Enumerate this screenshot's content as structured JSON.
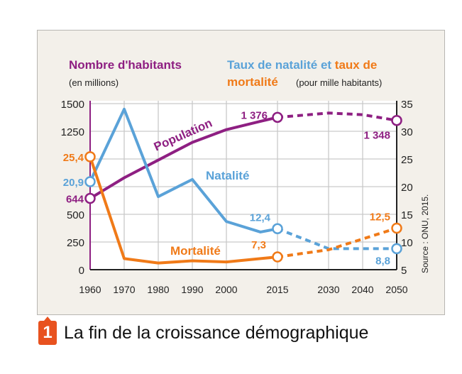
{
  "chart_data": {
    "type": "line",
    "caption_number": "1",
    "title": "La fin de la croissance démographique",
    "left_axis": {
      "title": "Nombre d'habitants",
      "unit": "(en millions)",
      "range": [
        0,
        1500
      ],
      "ticks": [
        0,
        250,
        500,
        750,
        1000,
        1250,
        1500
      ],
      "tick_labels": [
        "0",
        "250",
        "500",
        "",
        "",
        "1250",
        "1500"
      ]
    },
    "right_axis": {
      "title_part1": "Taux de natalité",
      "title_connector": " et ",
      "title_part2": "taux de",
      "title_part3": "mortalité",
      "unit": "(pour mille habitants)",
      "range": [
        5,
        35
      ],
      "ticks": [
        5,
        10,
        15,
        20,
        25,
        30,
        35
      ],
      "tick_labels": [
        "5",
        "10",
        "15",
        "20",
        "25",
        "30",
        "35"
      ]
    },
    "x_ticks": [
      1960,
      1970,
      1980,
      1990,
      2000,
      2015,
      2030,
      2040,
      2050
    ],
    "x_tick_labels": [
      "1960",
      "1970",
      "1980",
      "1990",
      "2000",
      "2015",
      "2030",
      "2040",
      "2050"
    ],
    "projection_from": 2015,
    "grid": true,
    "source": "Source : ONU, 2015.",
    "series": [
      {
        "name": "Population",
        "axis": "left",
        "color": "#8e1f82",
        "x": [
          1960,
          1970,
          1980,
          1990,
          2000,
          2010,
          2015,
          2030,
          2040,
          2050
        ],
        "values": [
          644,
          830,
          990,
          1150,
          1265,
          1340,
          1376,
          1415,
          1400,
          1348
        ],
        "labels": [
          {
            "x": 1960,
            "text": "644"
          },
          {
            "x": 2015,
            "text": "1 376"
          },
          {
            "x": 2050,
            "text": "1 348"
          }
        ]
      },
      {
        "name": "Natalité",
        "axis": "right",
        "color": "#5aa2d8",
        "x": [
          1960,
          1970,
          1980,
          1990,
          2000,
          2010,
          2015,
          2030,
          2050
        ],
        "values": [
          20.9,
          34,
          18.2,
          21.3,
          13.7,
          11.8,
          12.4,
          8.8,
          8.8
        ],
        "labels": [
          {
            "x": 1960,
            "text": "20,9"
          },
          {
            "x": 2015,
            "text": "12,4"
          },
          {
            "x": 2050,
            "text": "8,8"
          }
        ]
      },
      {
        "name": "Mortalité",
        "axis": "right",
        "color": "#f07a18",
        "x": [
          1960,
          1970,
          1980,
          1990,
          2000,
          2010,
          2015,
          2030,
          2050
        ],
        "values": [
          25.4,
          7.0,
          6.2,
          6.6,
          6.4,
          7.0,
          7.3,
          8.6,
          12.5
        ],
        "labels": [
          {
            "x": 1960,
            "text": "25,4"
          },
          {
            "x": 2015,
            "text": "7,3"
          },
          {
            "x": 2050,
            "text": "12,5"
          }
        ]
      }
    ]
  }
}
